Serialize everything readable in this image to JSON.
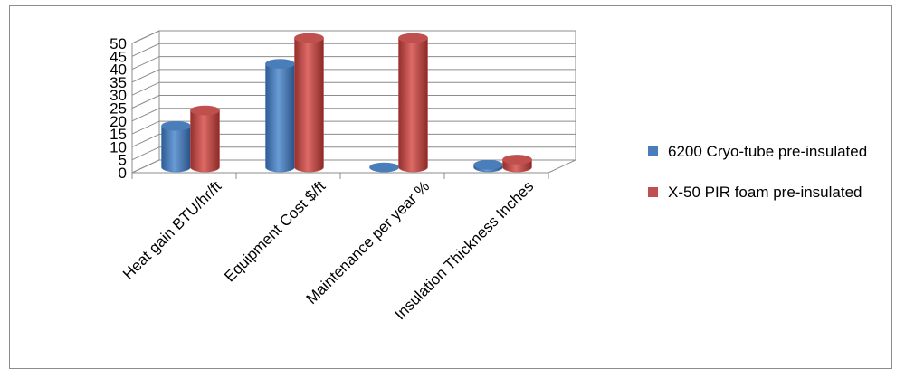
{
  "chart_data": {
    "type": "bar",
    "style": "3d-clustered-cylinder",
    "categories": [
      "Heat gain BTU/hr/ft",
      "Equipment Cost $/ft",
      "Maintenance per year %",
      "Insulation Thickness Inches"
    ],
    "series": [
      {
        "name": "6200 Cryo-tube pre-insulated",
        "color": "#4a7ebb",
        "values": [
          16,
          40,
          0,
          1
        ]
      },
      {
        "name": "X-50 PIR foam pre-insulated",
        "color": "#c0504d",
        "values": [
          22,
          50,
          50,
          3
        ]
      }
    ],
    "ylim": [
      0,
      50
    ],
    "yticks": [
      0,
      5,
      10,
      15,
      20,
      25,
      30,
      35,
      40,
      45,
      50
    ],
    "ytick_labels": [
      "0",
      "5",
      "10",
      "15",
      "20",
      "25",
      "30",
      "35",
      "40",
      "45",
      "50"
    ],
    "grid": true,
    "legend_position": "right"
  }
}
